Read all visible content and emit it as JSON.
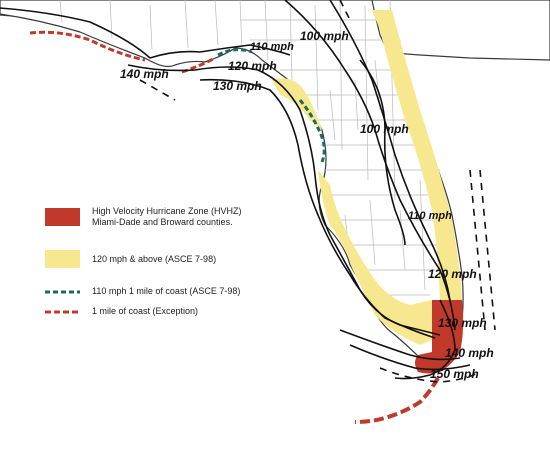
{
  "map": {
    "contour_labels": {
      "c100_north": "100 mph",
      "c100_mid": "100 mph",
      "c110_pan": "110 mph",
      "c110_east": "110 mph",
      "c120_pan": "120 mph",
      "c120_south": "120 mph",
      "c130_pan": "130 mph",
      "c130_south": "130 mph",
      "c140_pan": "140 mph",
      "c140_south": "140 mph",
      "c150_south": "150 mph"
    }
  },
  "legend": {
    "hvhz": {
      "label": "High Velocity Hurricane Zone (HVHZ)",
      "sub": "Miami-Dade and Broward counties.",
      "color": "#c0392b"
    },
    "above120": {
      "label": "120 mph & above (ASCE 7-98)",
      "color": "#f7e88f"
    },
    "coast110": {
      "label": "110 mph 1 mile of coast (ASCE 7-98)",
      "color": "#1f6b5a"
    },
    "coast_exception": {
      "label": "1 mile of coast (Exception)",
      "color": "#c0392b"
    }
  }
}
